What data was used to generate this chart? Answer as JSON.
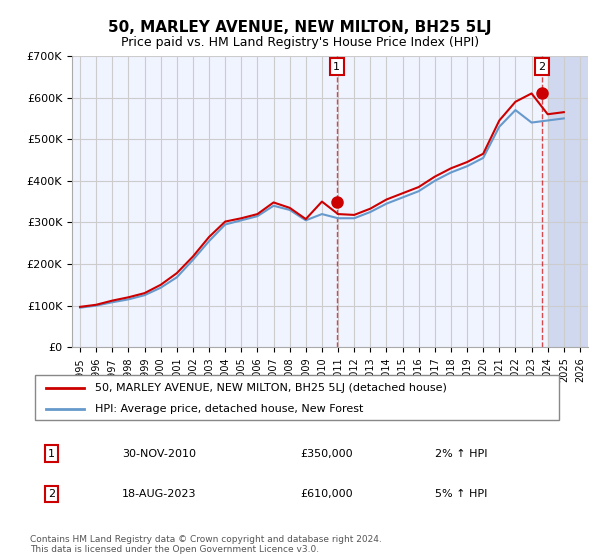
{
  "title": "50, MARLEY AVENUE, NEW MILTON, BH25 5LJ",
  "subtitle": "Price paid vs. HM Land Registry's House Price Index (HPI)",
  "legend_line1": "50, MARLEY AVENUE, NEW MILTON, BH25 5LJ (detached house)",
  "legend_line2": "HPI: Average price, detached house, New Forest",
  "transaction1": {
    "num": "1",
    "date": "30-NOV-2010",
    "price": "£350,000",
    "hpi": "2% ↑ HPI",
    "year": 2010.92
  },
  "transaction2": {
    "num": "2",
    "date": "18-AUG-2023",
    "price": "£610,000",
    "hpi": "5% ↑ HPI",
    "year": 2023.63
  },
  "copyright": "Contains HM Land Registry data © Crown copyright and database right 2024.\nThis data is licensed under the Open Government Licence v3.0.",
  "red_color": "#cc0000",
  "blue_color": "#6699cc",
  "hpi_years": [
    1995,
    1996,
    1997,
    1998,
    1999,
    2000,
    2001,
    2002,
    2003,
    2004,
    2005,
    2006,
    2007,
    2008,
    2009,
    2010,
    2011,
    2012,
    2013,
    2014,
    2015,
    2016,
    2017,
    2018,
    2019,
    2020,
    2021,
    2022,
    2023,
    2024,
    2025
  ],
  "hpi_values": [
    95000,
    100000,
    108000,
    115000,
    125000,
    143000,
    168000,
    210000,
    255000,
    295000,
    305000,
    315000,
    340000,
    330000,
    305000,
    320000,
    310000,
    310000,
    325000,
    345000,
    360000,
    375000,
    400000,
    420000,
    435000,
    455000,
    530000,
    570000,
    540000,
    545000,
    550000
  ],
  "prop_years": [
    1995,
    1996,
    1997,
    1998,
    1999,
    2000,
    2001,
    2002,
    2003,
    2004,
    2005,
    2006,
    2007,
    2008,
    2009,
    2010,
    2011,
    2012,
    2013,
    2014,
    2015,
    2016,
    2017,
    2018,
    2019,
    2020,
    2021,
    2022,
    2023,
    2024,
    2025
  ],
  "prop_values": [
    97000,
    102000,
    112000,
    120000,
    130000,
    150000,
    178000,
    218000,
    265000,
    302000,
    310000,
    320000,
    348000,
    335000,
    308000,
    350000,
    320000,
    318000,
    333000,
    355000,
    370000,
    385000,
    410000,
    430000,
    445000,
    465000,
    545000,
    590000,
    610000,
    560000,
    565000
  ],
  "ylim": [
    0,
    700000
  ],
  "yticks": [
    0,
    100000,
    200000,
    300000,
    400000,
    500000,
    600000,
    700000
  ],
  "ytick_labels": [
    "£0",
    "£100K",
    "£200K",
    "£300K",
    "£400K",
    "£500K",
    "£600K",
    "£700K"
  ],
  "xlim_start": 1994.5,
  "xlim_end": 2026.5,
  "xticks": [
    1995,
    1996,
    1997,
    1998,
    1999,
    2000,
    2001,
    2002,
    2003,
    2004,
    2005,
    2006,
    2007,
    2008,
    2009,
    2010,
    2011,
    2012,
    2013,
    2014,
    2015,
    2016,
    2017,
    2018,
    2019,
    2020,
    2021,
    2022,
    2023,
    2024,
    2025,
    2026
  ],
  "bg_color": "#f0f4ff",
  "hatch_color": "#d0d8f0",
  "grid_color": "#cccccc"
}
